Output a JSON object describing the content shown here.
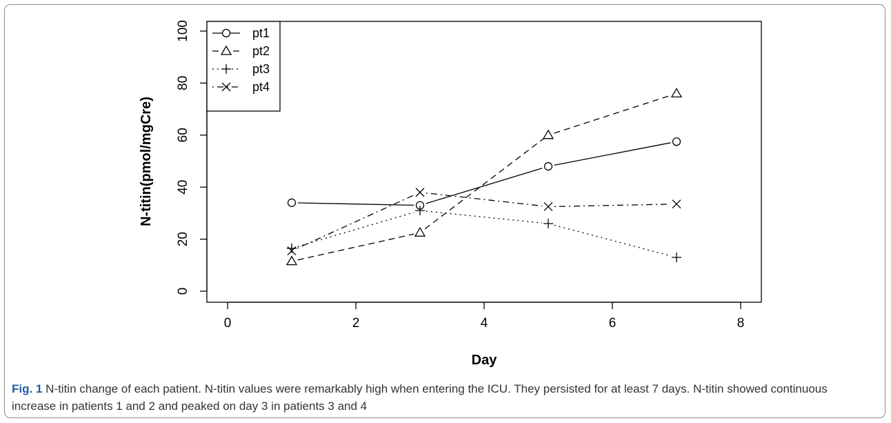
{
  "chart_data": {
    "type": "line",
    "xlabel": "Day",
    "ylabel": "N-titin(pmol/mgCre)",
    "xlim": [
      0,
      8
    ],
    "ylim": [
      0,
      100
    ],
    "xticks": [
      "0",
      "2",
      "4",
      "6",
      "8"
    ],
    "yticks": [
      "0",
      "20",
      "40",
      "60",
      "80",
      "100"
    ],
    "grid": false,
    "legend_position": "top-left",
    "x": [
      1,
      3,
      5,
      7
    ],
    "series": [
      {
        "name": "pt1",
        "values": [
          34,
          33,
          48,
          57.5
        ],
        "line_style": "solid",
        "marker": "circle"
      },
      {
        "name": "pt2",
        "values": [
          11.5,
          22.5,
          60,
          76
        ],
        "line_style": "dashed",
        "marker": "triangle"
      },
      {
        "name": "pt3",
        "values": [
          16.5,
          31,
          26,
          13
        ],
        "line_style": "dotted",
        "marker": "plus"
      },
      {
        "name": "pt4",
        "values": [
          15.5,
          38,
          32.5,
          33.5
        ],
        "line_style": "dot-dash",
        "marker": "cross"
      }
    ]
  },
  "caption": {
    "lead": "Fig. 1",
    "text": " N-titin change of each patient. N-titin values were remarkably high when entering the ICU. They persisted for at least 7 days. N-titin showed continuous increase in patients 1 and 2 and peaked on day 3 in patients 3 and 4"
  },
  "colors": {
    "ink": "#000000",
    "caption_lead": "#1d5fa5",
    "caption_text": "#333333"
  }
}
